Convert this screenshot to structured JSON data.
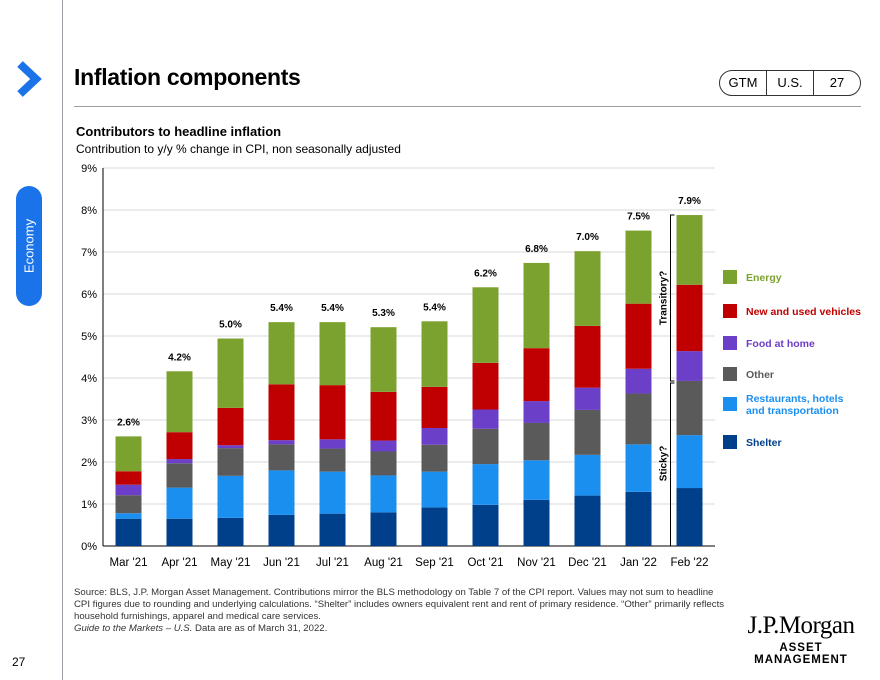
{
  "page": {
    "title": "Inflation components",
    "badge": [
      "GTM",
      "U.S.",
      "27"
    ],
    "side_tab": "Economy",
    "page_number": "27",
    "source_line1": "Source: BLS, J.P. Morgan Asset Management. Contributions mirror the BLS methodology on Table 7 of the CPI report. Values may not sum to headline CPI figures due to rounding and underlying calculations. “Shelter” includes owners equivalent rent and rent of primary residence. “Other” primarily reflects household furnishings, apparel and medical care services.",
    "source_guide": "Guide to the Markets – U.S.",
    "source_date": " Data are as of March 31, 2022.",
    "logo_line1": "J.P.Morgan",
    "logo_line2": "ASSET MANAGEMENT",
    "colors": {
      "accent": "#1a73e8"
    }
  },
  "chart_data": {
    "type": "bar",
    "stacked": true,
    "title": "Contributors to headline inflation",
    "subtitle": "Contribution to y/y % change in CPI, non seasonally adjusted",
    "categories": [
      "Mar '21",
      "Apr '21",
      "May '21",
      "Jun '21",
      "Jul '21",
      "Aug '21",
      "Sep '21",
      "Oct '21",
      "Nov '21",
      "Dec '21",
      "Jan '22",
      "Feb '22"
    ],
    "ylim": [
      0,
      9
    ],
    "yticks": [
      "0%",
      "1%",
      "2%",
      "3%",
      "4%",
      "5%",
      "6%",
      "7%",
      "8%",
      "9%"
    ],
    "grid": true,
    "legend_position": "right",
    "totals": [
      "2.6%",
      "4.2%",
      "5.0%",
      "5.4%",
      "5.4%",
      "5.3%",
      "5.4%",
      "6.2%",
      "6.8%",
      "7.0%",
      "7.5%",
      "7.9%"
    ],
    "series": [
      {
        "name": "Shelter",
        "color": "#003f8a",
        "values": [
          0.65,
          0.65,
          0.67,
          0.74,
          0.77,
          0.8,
          0.92,
          0.98,
          1.1,
          1.2,
          1.29,
          1.38
        ]
      },
      {
        "name": "Restaurants, hotels and transportation",
        "color": "#1a8ff0",
        "values": [
          0.13,
          0.74,
          1.0,
          1.06,
          1.0,
          0.88,
          0.85,
          0.97,
          0.94,
          0.97,
          1.13,
          1.26
        ]
      },
      {
        "name": "Other",
        "color": "#5a5a5a",
        "values": [
          0.43,
          0.58,
          0.66,
          0.62,
          0.55,
          0.57,
          0.64,
          0.84,
          0.89,
          1.07,
          1.21,
          1.29
        ]
      },
      {
        "name": "Food  at home",
        "color": "#6b3fc7",
        "values": [
          0.25,
          0.1,
          0.07,
          0.1,
          0.22,
          0.26,
          0.4,
          0.46,
          0.52,
          0.53,
          0.59,
          0.71
        ]
      },
      {
        "name": "New and used vehicles",
        "color": "#c00000",
        "values": [
          0.32,
          0.64,
          0.89,
          1.33,
          1.29,
          1.16,
          0.98,
          1.11,
          1.26,
          1.47,
          1.55,
          1.58
        ]
      },
      {
        "name": "Energy",
        "color": "#7ba22f",
        "values": [
          0.83,
          1.45,
          1.65,
          1.48,
          1.5,
          1.54,
          1.56,
          1.8,
          2.03,
          1.78,
          1.74,
          1.66
        ]
      }
    ],
    "legend_order": [
      "Energy",
      "New and used vehicles",
      "Food  at home",
      "Other",
      "Restaurants, hotels and transportation",
      "Shelter"
    ],
    "annotations": {
      "transitory": "Transitory?",
      "sticky": "Sticky?"
    }
  }
}
